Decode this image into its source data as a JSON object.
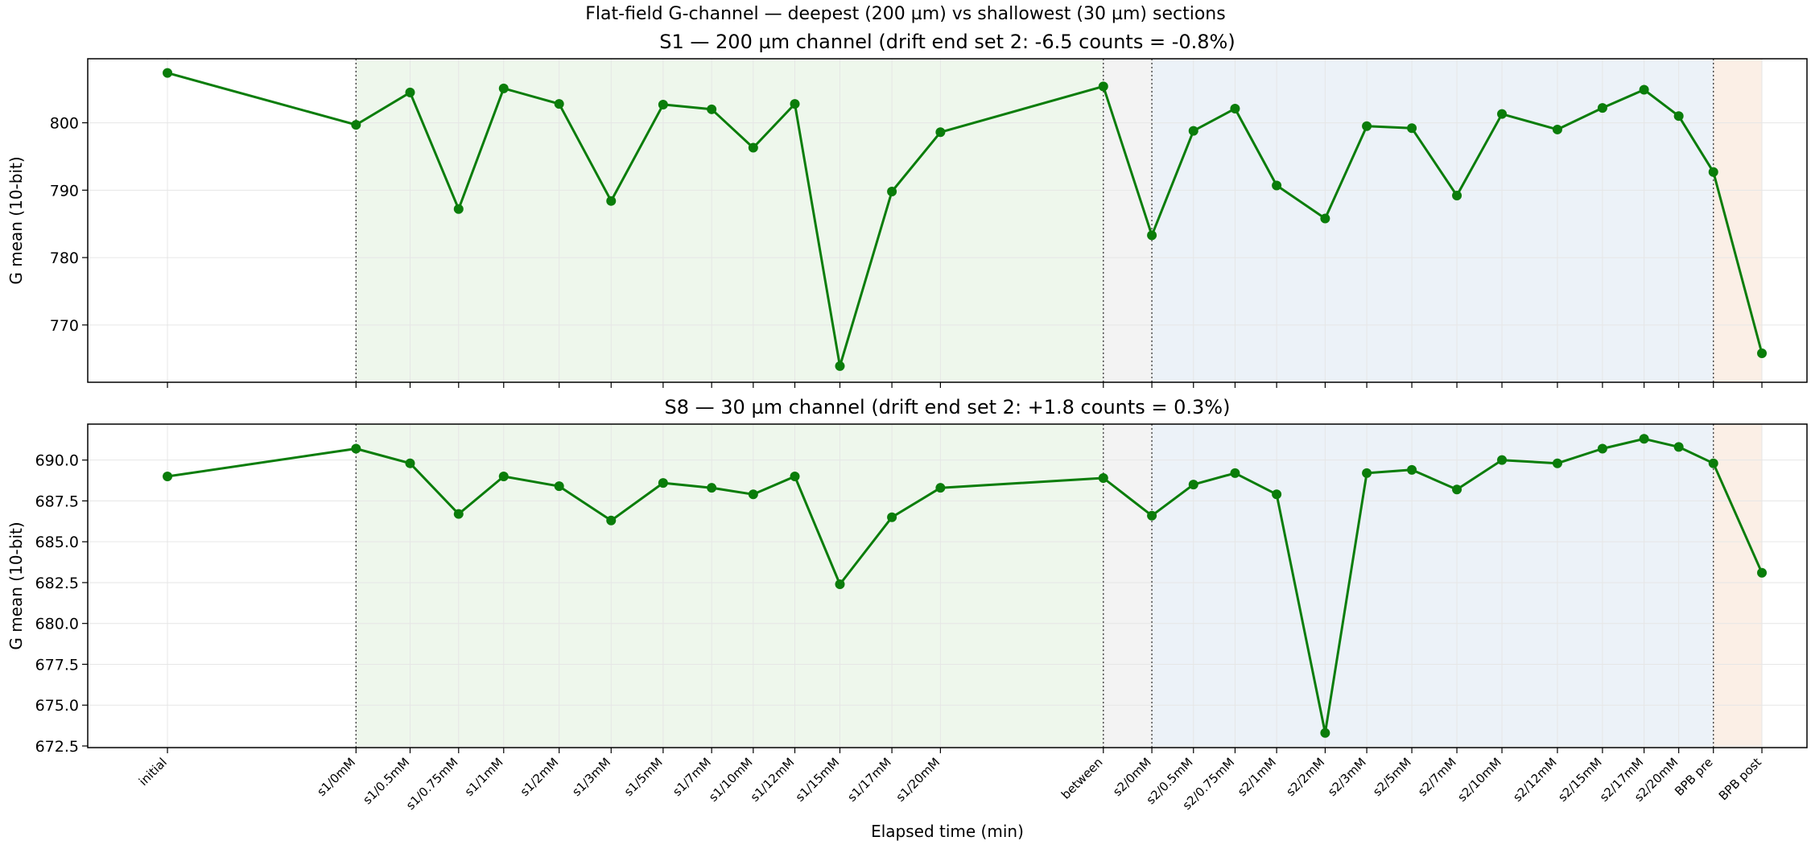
{
  "figure": {
    "suptitle": "Flat-field G-channel — deepest (200 µm) vs shallowest (30 µm) sections",
    "xlabel": "Elapsed time (min)"
  },
  "colors": {
    "line": "#0a7d0a",
    "grid": "#e6e6e6",
    "set1_span": "#eef7ec",
    "between_span": "#f3f3f3",
    "set2_span": "#ecf2f8",
    "bpb_span": "#fbefe6",
    "vline": "#444444"
  },
  "chart_data": [
    {
      "type": "line",
      "title": "S1 — 200 µm channel  (drift end set 2: -6.5 counts = -0.8%)",
      "ylabel": "G mean (10-bit)",
      "categories": [
        "initial",
        "s1/0mM",
        "s1/0.5mM",
        "s1/0.75mM",
        "s1/1mM",
        "s1/2mM",
        "s1/3mM",
        "s1/5mM",
        "s1/7mM",
        "s1/10mM",
        "s1/12mM",
        "s1/15mM",
        "s1/17mM",
        "s1/20mM",
        "between",
        "s2/0mM",
        "s2/0.5mM",
        "s2/0.75mM",
        "s2/1mM",
        "s2/2mM",
        "s2/3mM",
        "s2/5mM",
        "s2/7mM",
        "s2/10mM",
        "s2/12mM",
        "s2/15mM",
        "s2/17mM",
        "s2/20mM",
        "BPB pre",
        "BPB post"
      ],
      "x": [
        0,
        27.2,
        35,
        42,
        48.5,
        56.5,
        64,
        71.5,
        78.5,
        84.5,
        90.5,
        97,
        104.5,
        111.5,
        135,
        142,
        148,
        154,
        160,
        167,
        173,
        179.5,
        186,
        192.5,
        200.5,
        207,
        213,
        218,
        223,
        230
      ],
      "values": [
        807.4,
        799.7,
        804.5,
        787.2,
        805.1,
        802.8,
        788.4,
        802.7,
        802.0,
        796.3,
        802.8,
        763.9,
        789.8,
        798.6,
        805.4,
        783.3,
        798.8,
        802.1,
        790.7,
        785.8,
        799.5,
        799.2,
        789.2,
        801.3,
        799.0,
        802.2,
        804.9,
        801.0,
        792.7,
        765.8
      ],
      "yticks": [
        770,
        780,
        790,
        800
      ],
      "ytick_labels": [
        "770",
        "780",
        "790",
        "800"
      ],
      "ylim": [
        761.5,
        809.5
      ]
    },
    {
      "type": "line",
      "title": "S8 — 30 µm channel  (drift end set 2: +1.8 counts = 0.3%)",
      "ylabel": "G mean (10-bit)",
      "categories": [
        "initial",
        "s1/0mM",
        "s1/0.5mM",
        "s1/0.75mM",
        "s1/1mM",
        "s1/2mM",
        "s1/3mM",
        "s1/5mM",
        "s1/7mM",
        "s1/10mM",
        "s1/12mM",
        "s1/15mM",
        "s1/17mM",
        "s1/20mM",
        "between",
        "s2/0mM",
        "s2/0.5mM",
        "s2/0.75mM",
        "s2/1mM",
        "s2/2mM",
        "s2/3mM",
        "s2/5mM",
        "s2/7mM",
        "s2/10mM",
        "s2/12mM",
        "s2/15mM",
        "s2/17mM",
        "s2/20mM",
        "BPB pre",
        "BPB post"
      ],
      "x": [
        0,
        27.2,
        35,
        42,
        48.5,
        56.5,
        64,
        71.5,
        78.5,
        84.5,
        90.5,
        97,
        104.5,
        111.5,
        135,
        142,
        148,
        154,
        160,
        167,
        173,
        179.5,
        186,
        192.5,
        200.5,
        207,
        213,
        218,
        223,
        230
      ],
      "values": [
        689.0,
        690.7,
        689.8,
        686.7,
        689.0,
        688.4,
        686.3,
        688.6,
        688.3,
        687.9,
        689.0,
        682.4,
        686.5,
        688.3,
        688.9,
        686.6,
        688.5,
        689.2,
        687.9,
        673.3,
        689.2,
        689.4,
        688.2,
        690.0,
        689.8,
        690.7,
        691.3,
        690.8,
        689.8,
        683.1
      ],
      "yticks": [
        672.5,
        675.0,
        677.5,
        680.0,
        682.5,
        685.0,
        687.5,
        690.0
      ],
      "ytick_labels": [
        "672.5",
        "675.0",
        "677.5",
        "680.0",
        "682.5",
        "685.0",
        "687.5",
        "690.0"
      ],
      "ylim": [
        672.4,
        692.2
      ]
    }
  ]
}
